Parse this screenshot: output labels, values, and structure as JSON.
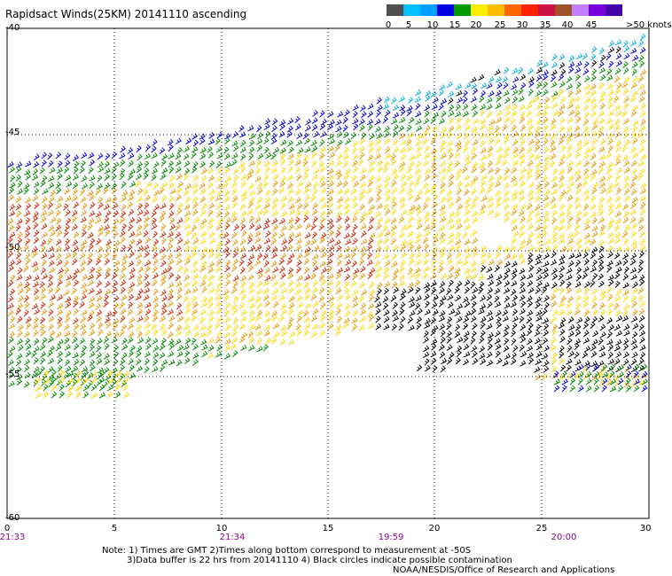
{
  "title": "Rapidsact Winds(25KM) 20141110 ascending",
  "colorbar": {
    "colors": [
      "#4f4f4f",
      "#00bfff",
      "#00a0ff",
      "#0000e0",
      "#009900",
      "#ffee00",
      "#ffbb00",
      "#ff6600",
      "#ff2200",
      "#cc1144",
      "#a0522d",
      "#c080ff",
      "#7700dd",
      "#4400aa"
    ],
    "labels": [
      "0",
      "5",
      "10",
      "15",
      "20",
      "25",
      "30",
      "35",
      "40",
      "45",
      ">50 knots"
    ]
  },
  "axes": {
    "lat_labels": [
      "-40",
      "-45",
      "-50",
      "-55",
      "-60"
    ],
    "lon_labels": [
      "0",
      "5",
      "10",
      "15",
      "20",
      "25",
      "30"
    ],
    "time_labels": [
      "21:33",
      "21:34",
      "19:59",
      "20:00"
    ]
  },
  "notes": {
    "line1": "Note: 1) Times are GMT 2)Times along bottom correspond to measurement at -50S",
    "line2": "3)Data buffer is 22 hrs from 20141110 4) Black circles indicate possible contamination",
    "credit": "NOAA/NESDIS/Office of Research and Applications"
  },
  "map": {
    "grid": "dotted",
    "lat_range": [
      -60,
      -40
    ],
    "lon_range": [
      0,
      30
    ],
    "wind_barb_colors": {
      "black": "#000000",
      "blue": "#0000cc",
      "cyan": "#00b0e0",
      "green": "#008800",
      "yellow": "#ffd700",
      "orange": "#e69500",
      "red": "#cc2200"
    }
  }
}
